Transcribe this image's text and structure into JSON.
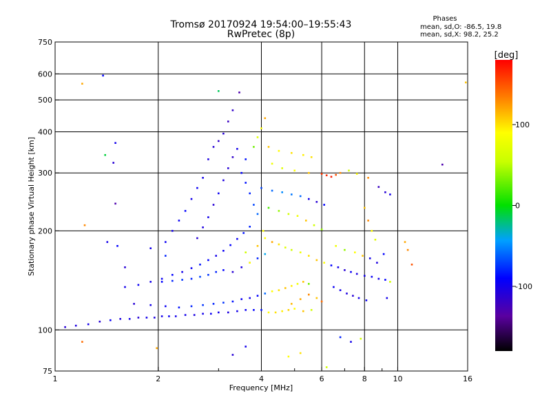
{
  "chart_data": {
    "type": "scatter",
    "title": "Tromsø 20170924  19:54:00–19:55:43",
    "subtitle": "RwPretec (8p)",
    "phase_header": "Phases",
    "phase_stats": [
      "mean, sd,O:  -86.5, 19.8",
      "mean, sd,X:   98.2, 25.2"
    ],
    "xlabel": "Frequency [MHz]",
    "ylabel": "Stationary phase Virtual Height [km]",
    "x_scale": "log",
    "y_scale": "log",
    "xlim": [
      1,
      16
    ],
    "ylim": [
      75,
      750
    ],
    "x_ticks": [
      1,
      2,
      4,
      6,
      8,
      10,
      16
    ],
    "x_tick_labels": [
      "1",
      "2",
      "4",
      "6",
      "8",
      "10",
      "16"
    ],
    "x_minor_ticks": [
      3,
      5,
      7,
      9
    ],
    "y_ticks": [
      75,
      100,
      200,
      300,
      400,
      500,
      600,
      750
    ],
    "y_tick_labels": [
      "75",
      "100",
      "200",
      "300",
      "400",
      "500",
      "600",
      "750"
    ],
    "grid": true,
    "colorbar": {
      "label": "[deg]",
      "range": [
        -180,
        180
      ],
      "ticks": [
        100,
        0,
        -100
      ],
      "tick_labels": [
        "100",
        "0",
        "-100"
      ]
    },
    "colors": {
      "grid": "#000000",
      "background": "#ffffff"
    },
    "series": [
      {
        "points": [
          [
            1.07,
            102,
            -110
          ],
          [
            1.15,
            103,
            -105
          ],
          [
            1.25,
            104,
            -100
          ],
          [
            1.35,
            106,
            -110
          ],
          [
            1.45,
            107,
            -95
          ],
          [
            1.55,
            108,
            -105
          ],
          [
            1.65,
            108,
            -100
          ],
          [
            1.75,
            109,
            -110
          ],
          [
            1.85,
            109,
            -100
          ],
          [
            1.95,
            109,
            -105
          ],
          [
            2.05,
            110,
            -100
          ],
          [
            2.15,
            110,
            -95
          ],
          [
            2.25,
            110,
            -100
          ],
          [
            2.4,
            111,
            -100
          ],
          [
            2.55,
            111,
            -105
          ],
          [
            2.7,
            112,
            -100
          ],
          [
            2.85,
            112,
            -95
          ],
          [
            3.0,
            113,
            -100
          ],
          [
            3.2,
            113,
            -105
          ],
          [
            3.4,
            114,
            -100
          ],
          [
            3.6,
            115,
            -95
          ],
          [
            3.8,
            115,
            -90
          ],
          [
            4.0,
            115,
            -85
          ],
          [
            4.2,
            113,
            90
          ],
          [
            4.4,
            113,
            100
          ],
          [
            4.6,
            114,
            95
          ],
          [
            4.8,
            115,
            105
          ],
          [
            5.0,
            116,
            90
          ],
          [
            5.3,
            114,
            110
          ],
          [
            5.6,
            115,
            60
          ],
          [
            1.7,
            120,
            -110
          ],
          [
            1.9,
            119,
            -100
          ],
          [
            2.1,
            118,
            -95
          ],
          [
            2.3,
            117,
            -85
          ],
          [
            2.5,
            118,
            -80
          ],
          [
            2.7,
            119,
            -75
          ],
          [
            2.9,
            120,
            -80
          ],
          [
            3.1,
            121,
            -75
          ],
          [
            3.3,
            122,
            -85
          ],
          [
            3.5,
            124,
            -95
          ],
          [
            3.7,
            125,
            -100
          ],
          [
            3.9,
            127,
            -90
          ],
          [
            4.1,
            129,
            -60
          ],
          [
            4.3,
            131,
            90
          ],
          [
            4.5,
            132,
            100
          ],
          [
            4.7,
            134,
            110
          ],
          [
            4.9,
            136,
            95
          ],
          [
            5.1,
            138,
            80
          ],
          [
            5.3,
            140,
            110
          ],
          [
            5.5,
            138,
            30
          ],
          [
            1.6,
            135,
            -100
          ],
          [
            1.75,
            137,
            -95
          ],
          [
            1.9,
            140,
            -100
          ],
          [
            2.05,
            143,
            -95
          ],
          [
            2.2,
            147,
            -90
          ],
          [
            2.35,
            150,
            -100
          ],
          [
            2.5,
            154,
            -95
          ],
          [
            2.65,
            158,
            -85
          ],
          [
            2.8,
            163,
            -90
          ],
          [
            2.95,
            168,
            -100
          ],
          [
            3.1,
            174,
            -95
          ],
          [
            3.25,
            181,
            -90
          ],
          [
            3.4,
            189,
            -95
          ],
          [
            3.55,
            197,
            -85
          ],
          [
            3.7,
            206,
            -80
          ],
          [
            3.3,
            150,
            -110
          ],
          [
            3.5,
            155,
            -105
          ],
          [
            3.7,
            160,
            -95
          ],
          [
            3.9,
            165,
            -80
          ],
          [
            4.1,
            170,
            -40
          ],
          [
            2.05,
            140,
            -90
          ],
          [
            2.2,
            141,
            -80
          ],
          [
            2.35,
            142,
            -75
          ],
          [
            2.5,
            143,
            -80
          ],
          [
            2.65,
            145,
            -70
          ],
          [
            2.8,
            147,
            -75
          ],
          [
            2.95,
            150,
            -80
          ],
          [
            3.1,
            152,
            -90
          ],
          [
            2.6,
            190,
            -110
          ],
          [
            2.7,
            205,
            -105
          ],
          [
            2.8,
            220,
            -100
          ],
          [
            2.9,
            240,
            -110
          ],
          [
            3.0,
            260,
            -95
          ],
          [
            3.1,
            285,
            -105
          ],
          [
            3.2,
            310,
            -110
          ],
          [
            3.3,
            335,
            -115
          ],
          [
            3.4,
            355,
            -100
          ],
          [
            3.0,
            375,
            -115
          ],
          [
            3.1,
            395,
            -110
          ],
          [
            3.2,
            430,
            -120
          ],
          [
            3.3,
            465,
            -115
          ],
          [
            2.8,
            330,
            -105
          ],
          [
            2.9,
            360,
            -110
          ],
          [
            2.7,
            290,
            -100
          ],
          [
            2.6,
            270,
            -95
          ],
          [
            2.5,
            250,
            -100
          ],
          [
            2.4,
            230,
            -90
          ],
          [
            2.3,
            215,
            -95
          ],
          [
            2.2,
            200,
            -100
          ],
          [
            2.1,
            185,
            -95
          ],
          [
            3.5,
            300,
            -90
          ],
          [
            3.6,
            280,
            -85
          ],
          [
            3.7,
            260,
            -80
          ],
          [
            3.8,
            240,
            -70
          ],
          [
            3.9,
            225,
            -60
          ],
          [
            3.6,
            330,
            -85
          ],
          [
            3.8,
            360,
            30
          ],
          [
            3.9,
            385,
            70
          ],
          [
            4.0,
            410,
            90
          ],
          [
            4.1,
            440,
            120
          ],
          [
            4.2,
            360,
            110
          ],
          [
            4.5,
            350,
            90
          ],
          [
            4.9,
            345,
            100
          ],
          [
            5.3,
            340,
            95
          ],
          [
            5.6,
            335,
            100
          ],
          [
            4.3,
            320,
            80
          ],
          [
            4.6,
            310,
            70
          ],
          [
            5.0,
            305,
            90
          ],
          [
            5.5,
            300,
            110
          ],
          [
            6.0,
            298,
            160
          ],
          [
            6.2,
            295,
            165
          ],
          [
            6.4,
            292,
            170
          ],
          [
            6.6,
            296,
            150
          ],
          [
            6.8,
            300,
            130
          ],
          [
            7.2,
            305,
            60
          ],
          [
            7.6,
            298,
            90
          ],
          [
            8.2,
            290,
            130
          ],
          [
            8.8,
            272,
            -120
          ],
          [
            9.2,
            262,
            -110
          ],
          [
            9.5,
            258,
            -100
          ],
          [
            4.0,
            270,
            -70
          ],
          [
            4.3,
            265,
            -60
          ],
          [
            4.6,
            262,
            -50
          ],
          [
            4.9,
            258,
            -55
          ],
          [
            5.2,
            255,
            -60
          ],
          [
            5.5,
            250,
            -100
          ],
          [
            5.8,
            245,
            -110
          ],
          [
            6.1,
            240,
            -90
          ],
          [
            4.2,
            235,
            20
          ],
          [
            4.5,
            230,
            40
          ],
          [
            4.8,
            225,
            60
          ],
          [
            5.1,
            222,
            80
          ],
          [
            5.4,
            215,
            110
          ],
          [
            5.7,
            208,
            60
          ],
          [
            6.0,
            202,
            40
          ],
          [
            4.1,
            190,
            90
          ],
          [
            4.3,
            185,
            120
          ],
          [
            4.5,
            182,
            100
          ],
          [
            4.7,
            178,
            70
          ],
          [
            4.9,
            175,
            60
          ],
          [
            5.2,
            172,
            80
          ],
          [
            5.5,
            168,
            100
          ],
          [
            5.8,
            163,
            110
          ],
          [
            6.1,
            160,
            90
          ],
          [
            6.4,
            157,
            -90
          ],
          [
            6.7,
            155,
            -100
          ],
          [
            7.0,
            152,
            -110
          ],
          [
            7.3,
            150,
            -95
          ],
          [
            7.6,
            148,
            -105
          ],
          [
            8.0,
            146,
            -100
          ],
          [
            8.4,
            145,
            -95
          ],
          [
            8.8,
            143,
            -100
          ],
          [
            9.2,
            142,
            -90
          ],
          [
            9.5,
            140,
            60
          ],
          [
            6.5,
            135,
            -95
          ],
          [
            6.8,
            132,
            -100
          ],
          [
            7.1,
            129,
            -105
          ],
          [
            7.4,
            127,
            -110
          ],
          [
            7.7,
            125,
            -100
          ],
          [
            8.1,
            123,
            -95
          ],
          [
            6.6,
            180,
            80
          ],
          [
            7.0,
            175,
            40
          ],
          [
            7.5,
            172,
            90
          ],
          [
            7.9,
            168,
            110
          ],
          [
            8.3,
            165,
            -100
          ],
          [
            8.7,
            160,
            -105
          ],
          [
            9.1,
            170,
            -90
          ],
          [
            10.5,
            185,
            120
          ],
          [
            10.7,
            175,
            130
          ],
          [
            11.0,
            158,
            150
          ],
          [
            8.0,
            235,
            110
          ],
          [
            8.2,
            215,
            130
          ],
          [
            8.4,
            200,
            90
          ],
          [
            8.6,
            188,
            70
          ],
          [
            5.8,
            125,
            110
          ],
          [
            6.0,
            122,
            140
          ],
          [
            5.5,
            128,
            130
          ],
          [
            5.2,
            124,
            120
          ],
          [
            4.9,
            120,
            115
          ],
          [
            9.3,
            125,
            -100
          ],
          [
            6.8,
            95,
            -80
          ],
          [
            7.3,
            92,
            -100
          ],
          [
            7.8,
            94,
            60
          ],
          [
            5.2,
            85,
            100
          ],
          [
            4.8,
            83,
            90
          ],
          [
            6.2,
            77,
            60
          ],
          [
            3.6,
            89,
            -100
          ],
          [
            3.3,
            84,
            -110
          ],
          [
            1.2,
            560,
            120
          ],
          [
            1.38,
            593,
            -90
          ],
          [
            1.4,
            340,
            -10
          ],
          [
            1.48,
            322,
            -110
          ],
          [
            1.5,
            370,
            -100
          ],
          [
            1.5,
            242,
            -130
          ],
          [
            1.22,
            208,
            130
          ],
          [
            1.42,
            185,
            -100
          ],
          [
            1.52,
            180,
            -90
          ],
          [
            1.6,
            155,
            -110
          ],
          [
            1.9,
            177,
            -100
          ],
          [
            2.1,
            168,
            -80
          ],
          [
            13.5,
            318,
            -130
          ],
          [
            15.8,
            565,
            110
          ],
          [
            1.2,
            92,
            140
          ],
          [
            1.98,
            88,
            120
          ],
          [
            3.45,
            527,
            -130
          ],
          [
            3.0,
            532,
            -15
          ],
          [
            3.6,
            172,
            60
          ],
          [
            3.7,
            160,
            90
          ],
          [
            3.9,
            180,
            110
          ],
          [
            4.05,
            200,
            90
          ]
        ]
      }
    ]
  }
}
